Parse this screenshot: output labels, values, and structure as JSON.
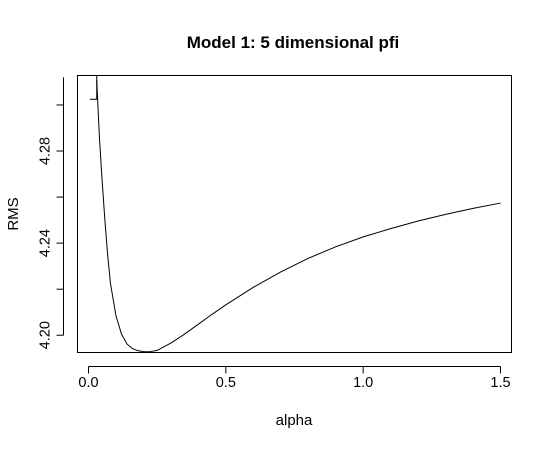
{
  "chart_data": {
    "type": "line",
    "title": "Model 1: 5 dimensional pfi",
    "xlabel": "alpha",
    "ylabel": "RMS",
    "xlim": [
      -0.04,
      1.54
    ],
    "ylim": [
      4.1925,
      4.3128
    ],
    "x_ticks": [
      0.0,
      0.5,
      1.0,
      1.5
    ],
    "x_tick_labels": [
      "0.0",
      "0.5",
      "1.0",
      "1.5"
    ],
    "y_ticks": [
      4.2,
      4.24,
      4.28
    ],
    "y_tick_labels": [
      "4.20",
      "4.24",
      "4.28"
    ],
    "grid": false,
    "legend": "none",
    "series": [
      {
        "x": [
          0.03,
          0.034,
          0.04,
          0.05,
          0.06,
          0.07,
          0.08,
          0.1,
          0.12,
          0.14,
          0.16,
          0.18,
          0.2,
          0.22,
          0.25,
          0.3,
          0.35,
          0.4,
          0.45,
          0.5,
          0.6,
          0.7,
          0.8,
          0.9,
          1.0,
          1.1,
          1.2,
          1.3,
          1.4,
          1.5
        ],
        "y": [
          4.3108,
          4.3005,
          4.2855,
          4.2665,
          4.2495,
          4.2345,
          4.2225,
          4.2085,
          4.2005,
          4.1962,
          4.1942,
          4.1933,
          4.1929,
          4.1928,
          4.1934,
          4.1966,
          4.2005,
          4.2048,
          4.2091,
          4.2132,
          4.2208,
          4.2275,
          4.2334,
          4.2384,
          4.2427,
          4.2463,
          4.2496,
          4.2525,
          4.2551,
          4.2574
        ]
      }
    ],
    "annotation_path": {
      "x": [
        0.005,
        0.03,
        0.03
      ],
      "y": [
        4.3025,
        4.3025,
        4.3128
      ]
    }
  }
}
